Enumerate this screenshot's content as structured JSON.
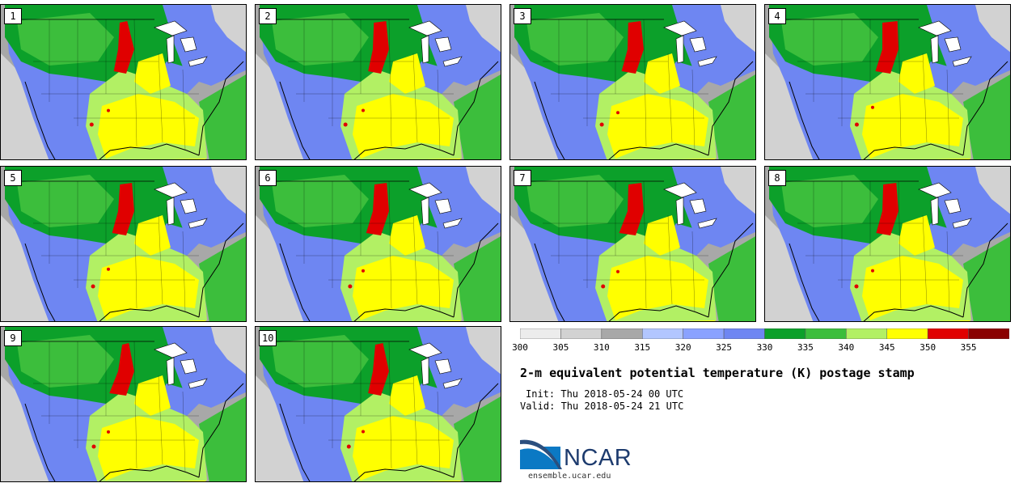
{
  "panels": [
    {
      "label": "1"
    },
    {
      "label": "2"
    },
    {
      "label": "3"
    },
    {
      "label": "4"
    },
    {
      "label": "5"
    },
    {
      "label": "6"
    },
    {
      "label": "7"
    },
    {
      "label": "8"
    },
    {
      "label": "9"
    },
    {
      "label": "10"
    }
  ],
  "colorbar": {
    "ticks": [
      "300",
      "305",
      "310",
      "315",
      "320",
      "325",
      "330",
      "335",
      "340",
      "345",
      "350",
      "355"
    ],
    "bins": [
      {
        "from": 300,
        "to": 305,
        "color": "#ececec"
      },
      {
        "from": 305,
        "to": 310,
        "color": "#d2d2d2"
      },
      {
        "from": 310,
        "to": 315,
        "color": "#a8a8a8"
      },
      {
        "from": 315,
        "to": 320,
        "color": "#b2c6ff"
      },
      {
        "from": 320,
        "to": 325,
        "color": "#8aa2ff"
      },
      {
        "from": 325,
        "to": 330,
        "color": "#6e86f2"
      },
      {
        "from": 330,
        "to": 335,
        "color": "#0ca02a"
      },
      {
        "from": 335,
        "to": 340,
        "color": "#3cbe3c"
      },
      {
        "from": 340,
        "to": 345,
        "color": "#b2f064"
      },
      {
        "from": 345,
        "to": 350,
        "color": "#ffff00"
      },
      {
        "from": 350,
        "to": 355,
        "color": "#e00000"
      },
      {
        "from": 355,
        "to": 360,
        "color": "#8a0000"
      }
    ]
  },
  "title": "2-m equivalent potential temperature (K) postage stamp",
  "init_text": "Init: Thu 2018-05-24 00 UTC",
  "valid_text": "Valid: Thu 2018-05-24 21 UTC",
  "logo": {
    "name": "NCAR",
    "url": "ensemble.ucar.edu"
  }
}
